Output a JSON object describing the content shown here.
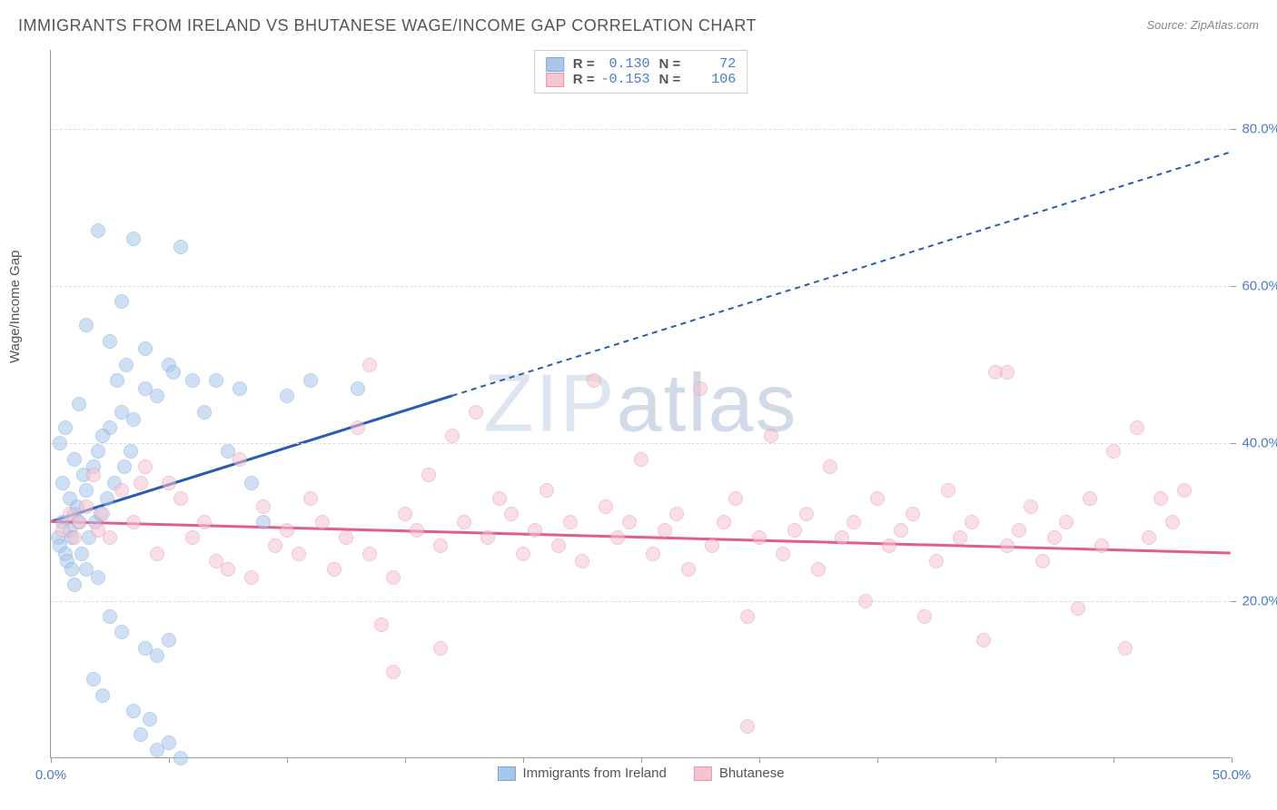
{
  "title": "IMMIGRANTS FROM IRELAND VS BHUTANESE WAGE/INCOME GAP CORRELATION CHART",
  "source": "Source: ZipAtlas.com",
  "ylabel": "Wage/Income Gap",
  "watermark_a": "ZIP",
  "watermark_b": "atlas",
  "chart": {
    "type": "scatter",
    "xlim": [
      0,
      50
    ],
    "ylim": [
      0,
      90
    ],
    "xticks": [
      0,
      5,
      10,
      15,
      20,
      25,
      30,
      35,
      40,
      45,
      50
    ],
    "xtick_labels": {
      "0": "0.0%",
      "50": "50.0%"
    },
    "yticks": [
      20,
      40,
      60,
      80
    ],
    "ytick_labels": {
      "20": "20.0%",
      "40": "40.0%",
      "60": "60.0%",
      "80": "80.0%"
    },
    "grid_color": "#dddddd",
    "background_color": "#ffffff",
    "series": [
      {
        "name": "Immigrants from Ireland",
        "color_fill": "#a9c7ec",
        "color_stroke": "#7ba8da",
        "R": "0.130",
        "N": "72",
        "trend": {
          "x1": 0,
          "y1": 30,
          "x2": 17,
          "y2": 46,
          "color": "#2a5bb0",
          "dash_extend_x": 50,
          "dash_extend_y": 77
        },
        "points": [
          [
            0.3,
            28
          ],
          [
            0.5,
            30
          ],
          [
            0.4,
            27
          ],
          [
            0.8,
            29
          ],
          [
            1.0,
            31
          ],
          [
            0.6,
            26
          ],
          [
            0.9,
            28
          ],
          [
            1.2,
            30
          ],
          [
            0.5,
            35
          ],
          [
            1.5,
            34
          ],
          [
            0.8,
            33
          ],
          [
            1.1,
            32
          ],
          [
            1.4,
            36
          ],
          [
            1.0,
            38
          ],
          [
            2.0,
            39
          ],
          [
            1.8,
            37
          ],
          [
            2.5,
            42
          ],
          [
            2.2,
            41
          ],
          [
            3.0,
            44
          ],
          [
            3.5,
            43
          ],
          [
            4.0,
            47
          ],
          [
            4.5,
            46
          ],
          [
            5.0,
            50
          ],
          [
            5.2,
            49
          ],
          [
            3.5,
            66
          ],
          [
            2.0,
            67
          ],
          [
            5.5,
            65
          ],
          [
            1.5,
            55
          ],
          [
            3.0,
            58
          ],
          [
            2.5,
            53
          ],
          [
            4.0,
            52
          ],
          [
            3.2,
            50
          ],
          [
            1.2,
            45
          ],
          [
            2.8,
            48
          ],
          [
            7.0,
            48
          ],
          [
            8.0,
            47
          ],
          [
            10.0,
            46
          ],
          [
            11.0,
            48
          ],
          [
            13.0,
            47
          ],
          [
            1.0,
            22
          ],
          [
            1.5,
            24
          ],
          [
            2.0,
            23
          ],
          [
            2.5,
            18
          ],
          [
            3.0,
            16
          ],
          [
            4.0,
            14
          ],
          [
            4.5,
            13
          ],
          [
            5.0,
            15
          ],
          [
            1.8,
            10
          ],
          [
            2.2,
            8
          ],
          [
            3.5,
            6
          ],
          [
            4.2,
            5
          ],
          [
            5.0,
            2
          ],
          [
            5.5,
            0
          ],
          [
            3.8,
            3
          ],
          [
            4.5,
            1
          ],
          [
            0.4,
            40
          ],
          [
            0.6,
            42
          ],
          [
            0.7,
            25
          ],
          [
            0.9,
            24
          ],
          [
            1.3,
            26
          ],
          [
            1.6,
            28
          ],
          [
            1.9,
            30
          ],
          [
            2.1,
            31
          ],
          [
            2.4,
            33
          ],
          [
            2.7,
            35
          ],
          [
            3.1,
            37
          ],
          [
            3.4,
            39
          ],
          [
            6.0,
            48
          ],
          [
            6.5,
            44
          ],
          [
            7.5,
            39
          ],
          [
            8.5,
            35
          ],
          [
            9.0,
            30
          ]
        ]
      },
      {
        "name": "Bhutanese",
        "color_fill": "#f5c4d1",
        "color_stroke": "#e997af",
        "R": "-0.153",
        "N": "106",
        "trend": {
          "x1": 0,
          "y1": 30,
          "x2": 50,
          "y2": 26,
          "color": "#e35c8a"
        },
        "points": [
          [
            0.5,
            29
          ],
          [
            0.8,
            31
          ],
          [
            1.0,
            28
          ],
          [
            1.2,
            30
          ],
          [
            1.5,
            32
          ],
          [
            2.0,
            29
          ],
          [
            2.2,
            31
          ],
          [
            2.5,
            28
          ],
          [
            3.0,
            34
          ],
          [
            3.5,
            30
          ],
          [
            4.0,
            37
          ],
          [
            4.5,
            26
          ],
          [
            5.0,
            35
          ],
          [
            5.5,
            33
          ],
          [
            6.0,
            28
          ],
          [
            6.5,
            30
          ],
          [
            7.0,
            25
          ],
          [
            7.5,
            24
          ],
          [
            8.0,
            38
          ],
          [
            8.5,
            23
          ],
          [
            9.0,
            32
          ],
          [
            9.5,
            27
          ],
          [
            10.0,
            29
          ],
          [
            10.5,
            26
          ],
          [
            11.0,
            33
          ],
          [
            11.5,
            30
          ],
          [
            12.0,
            24
          ],
          [
            12.5,
            28
          ],
          [
            13.0,
            42
          ],
          [
            13.5,
            26
          ],
          [
            14.0,
            17
          ],
          [
            14.5,
            23
          ],
          [
            15.0,
            31
          ],
          [
            15.5,
            29
          ],
          [
            16.0,
            36
          ],
          [
            16.5,
            27
          ],
          [
            17.0,
            41
          ],
          [
            17.5,
            30
          ],
          [
            18.0,
            44
          ],
          [
            18.5,
            28
          ],
          [
            19.0,
            33
          ],
          [
            19.5,
            31
          ],
          [
            20.0,
            26
          ],
          [
            20.5,
            29
          ],
          [
            21.0,
            34
          ],
          [
            21.5,
            27
          ],
          [
            22.0,
            30
          ],
          [
            22.5,
            25
          ],
          [
            23.0,
            48
          ],
          [
            23.5,
            32
          ],
          [
            24.0,
            28
          ],
          [
            24.5,
            30
          ],
          [
            25.0,
            38
          ],
          [
            25.5,
            26
          ],
          [
            26.0,
            29
          ],
          [
            26.5,
            31
          ],
          [
            27.0,
            24
          ],
          [
            27.5,
            47
          ],
          [
            28.0,
            27
          ],
          [
            28.5,
            30
          ],
          [
            29.0,
            33
          ],
          [
            29.5,
            18
          ],
          [
            30.0,
            28
          ],
          [
            30.5,
            41
          ],
          [
            31.0,
            26
          ],
          [
            31.5,
            29
          ],
          [
            32.0,
            31
          ],
          [
            32.5,
            24
          ],
          [
            33.0,
            37
          ],
          [
            33.5,
            28
          ],
          [
            34.0,
            30
          ],
          [
            34.5,
            20
          ],
          [
            35.0,
            33
          ],
          [
            35.5,
            27
          ],
          [
            36.0,
            29
          ],
          [
            36.5,
            31
          ],
          [
            37.0,
            18
          ],
          [
            37.5,
            25
          ],
          [
            38.0,
            34
          ],
          [
            38.5,
            28
          ],
          [
            39.0,
            30
          ],
          [
            39.5,
            15
          ],
          [
            40.0,
            49
          ],
          [
            40.5,
            27
          ],
          [
            41.0,
            29
          ],
          [
            41.5,
            32
          ],
          [
            42.0,
            25
          ],
          [
            42.5,
            28
          ],
          [
            43.0,
            30
          ],
          [
            43.5,
            19
          ],
          [
            44.0,
            33
          ],
          [
            44.5,
            27
          ],
          [
            45.0,
            39
          ],
          [
            46.0,
            42
          ],
          [
            46.5,
            28
          ],
          [
            47.0,
            33
          ],
          [
            47.5,
            30
          ],
          [
            48.0,
            34
          ],
          [
            13.5,
            50
          ],
          [
            14.5,
            11
          ],
          [
            16.5,
            14
          ],
          [
            29.5,
            4
          ],
          [
            40.5,
            49
          ],
          [
            45.5,
            14
          ],
          [
            1.8,
            36
          ],
          [
            3.8,
            35
          ]
        ]
      }
    ]
  },
  "legend": {
    "items": [
      {
        "label": "Immigrants from Ireland",
        "fill": "#a9c7ec",
        "stroke": "#7ba8da"
      },
      {
        "label": "Bhutanese",
        "fill": "#f5c4d1",
        "stroke": "#e997af"
      }
    ]
  }
}
